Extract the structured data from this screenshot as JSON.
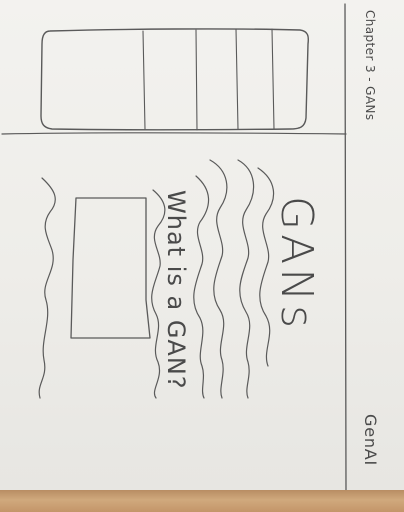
{
  "header": {
    "chapter_label": "Chapter 3 - GANs"
  },
  "slide": {
    "title": "GANs",
    "subtitle": "What is a GAN?"
  },
  "footer": {
    "label": "GenAI"
  },
  "colors": {
    "paper": "#efeeea",
    "ink": "#4a4a4a",
    "table": "#c9a178"
  }
}
